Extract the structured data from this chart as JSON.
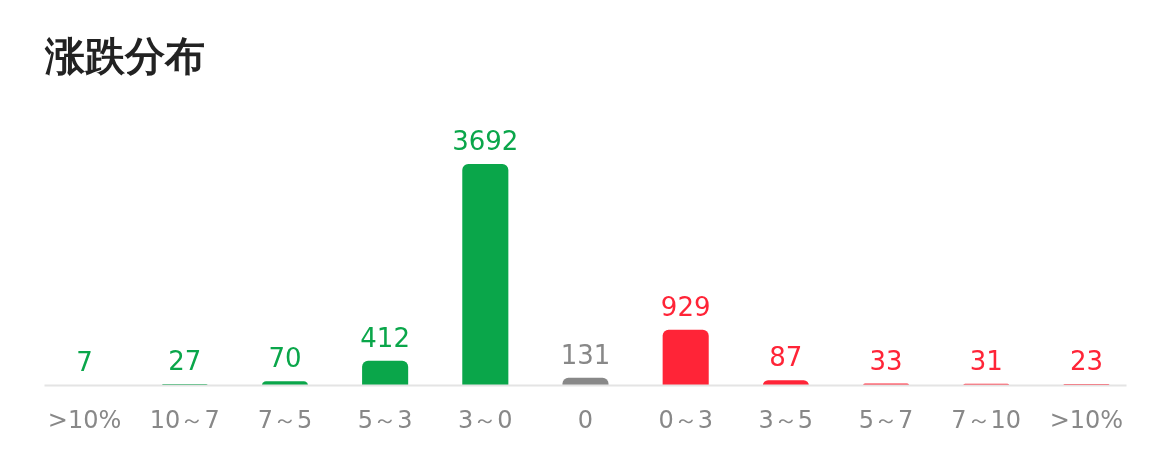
{
  "chart_data": {
    "type": "bar",
    "title": "涨跌分布",
    "categories": [
      ">10%",
      "10～7",
      "7～5",
      "5～3",
      "3～0",
      "0",
      "0～3",
      "3～5",
      "5～7",
      "7～10",
      ">10%"
    ],
    "values": [
      7,
      27,
      70,
      412,
      3692,
      131,
      929,
      87,
      33,
      31,
      23
    ],
    "colors": [
      "#0aa64a",
      "#0aa64a",
      "#0aa64a",
      "#0aa64a",
      "#0aa64a",
      "#888888",
      "#ff2437",
      "#ff2437",
      "#ff2437",
      "#ff2437",
      "#ff2437"
    ],
    "data_labels": true,
    "grid": false
  }
}
